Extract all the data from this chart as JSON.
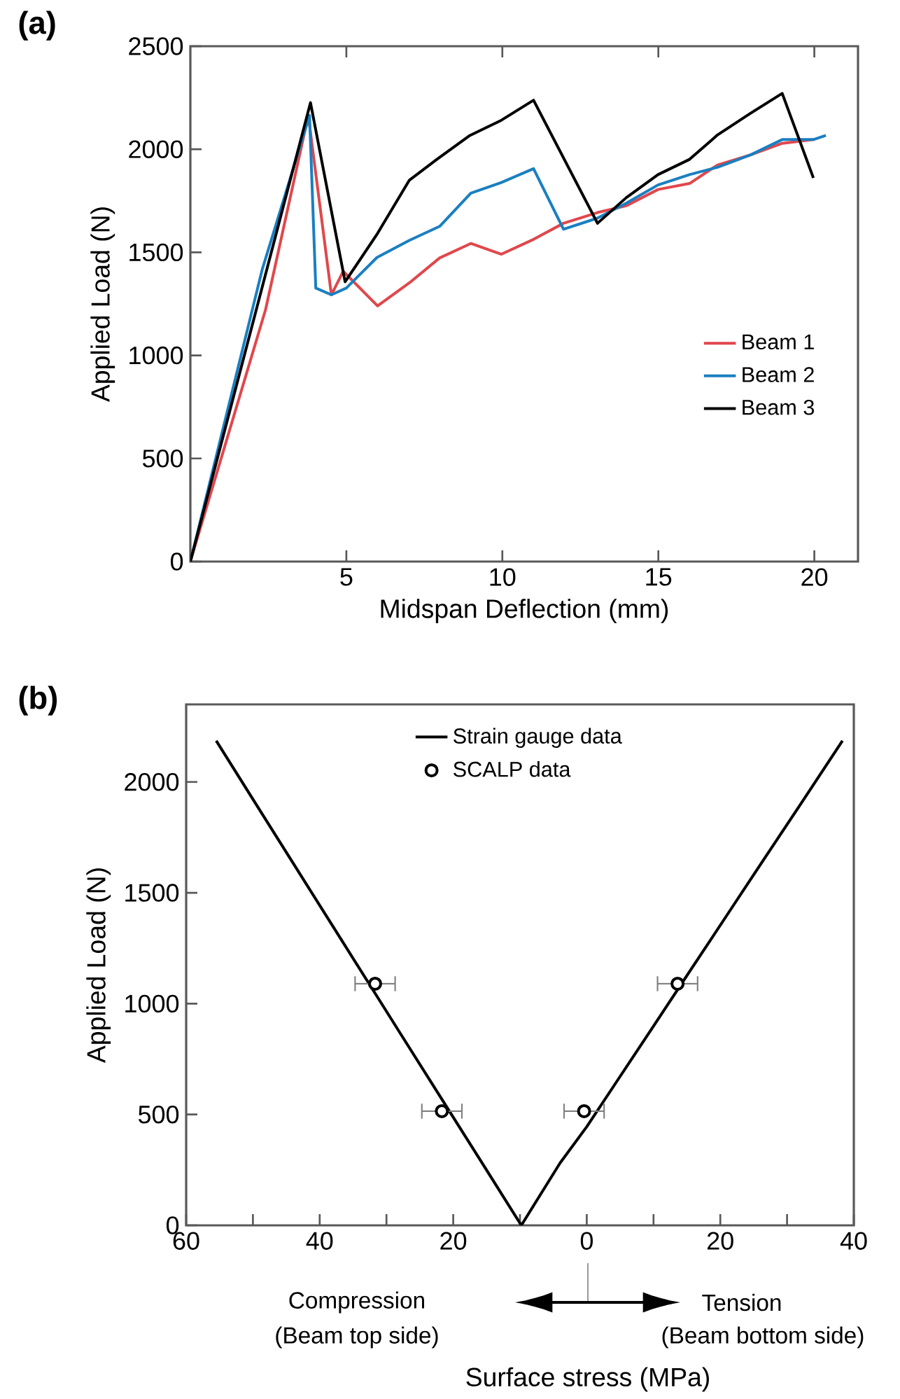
{
  "chart_data": [
    {
      "type": "line",
      "title": "(a)",
      "xlabel": "Midspan Deflection (mm)",
      "ylabel": "Applied Load (N)",
      "xlim": [
        0,
        21.4
      ],
      "xticks": [
        5,
        10,
        15,
        20
      ],
      "ylim": [
        0,
        2500
      ],
      "yticks": [
        0,
        500,
        1000,
        1500,
        2000,
        2500
      ],
      "legend": "right",
      "line_style": "solid",
      "marker": "none",
      "series": [
        {
          "name": "Beam 1",
          "color": "#e0474c",
          "x": [
            0,
            2.41,
            3.78,
            4.52,
            4.9,
            6.0,
            7.02,
            7.99,
            8.99,
            9.97,
            11.0,
            11.96,
            13.05,
            13.97,
            14.99,
            16.0,
            16.9,
            17.96,
            18.97,
            19.97
          ],
          "values": [
            0,
            1222,
            2164,
            1294,
            1408,
            1240,
            1352,
            1473,
            1543,
            1491,
            1563,
            1641,
            1693,
            1726,
            1805,
            1834,
            1924,
            1973,
            2029,
            2047
          ]
        },
        {
          "name": "Beam 2",
          "color": "#1a7fc1",
          "x": [
            0,
            2.3,
            3.82,
            4.02,
            4.52,
            5.0,
            5.98,
            7.02,
            7.99,
            8.99,
            9.97,
            11.0,
            11.96,
            13.05,
            13.97,
            14.99,
            16.0,
            16.9,
            17.96,
            18.97,
            19.97,
            20.37
          ],
          "values": [
            0,
            1415,
            2164,
            1327,
            1294,
            1327,
            1475,
            1558,
            1626,
            1787,
            1839,
            1906,
            1612,
            1666,
            1738,
            1827,
            1877,
            1913,
            1973,
            2047,
            2047,
            2067
          ]
        },
        {
          "name": "Beam 3",
          "color": "#000000",
          "x": [
            0,
            3.85,
            4.96,
            6.0,
            7.02,
            7.9,
            8.96,
            9.97,
            11.0,
            13.05,
            13.97,
            14.99,
            16.0,
            16.9,
            17.96,
            18.97,
            19.97
          ],
          "values": [
            0,
            2226,
            1357,
            1592,
            1850,
            1951,
            2067,
            2141,
            2238,
            1641,
            1765,
            1877,
            1951,
            2070,
            2175,
            2271,
            1861
          ]
        }
      ]
    },
    {
      "type": "line",
      "title": "(b)",
      "xlabel": "Surface stress (MPa)",
      "ylabel": "Applied Load (N)",
      "xlim": [
        -60,
        40
      ],
      "xticks": [
        {
          "value": -60,
          "label": "60"
        },
        {
          "value": -50,
          "label": null
        },
        {
          "value": -40,
          "label": "40"
        },
        {
          "value": -30,
          "label": null
        },
        {
          "value": -20,
          "label": "20"
        },
        {
          "value": -10,
          "label": null
        },
        0,
        {
          "value": 10,
          "label": null
        },
        20,
        {
          "value": 30,
          "label": null
        },
        40
      ],
      "ylim": [
        0,
        2350
      ],
      "yticks": [
        0,
        500,
        1000,
        1500,
        2000
      ],
      "legend": "top",
      "annotations": [
        "Compression",
        "(Beam top side)",
        "Tension",
        "(Beam bottom side)"
      ],
      "series": [
        {
          "name": "Strain gauge data",
          "type": "line",
          "color": "#000000",
          "line_style": "solid",
          "marker": "none",
          "x": [
            -55.5,
            -49,
            -43.9,
            -37,
            -31,
            -27.8,
            -22,
            -15,
            -9.8,
            -4,
            0,
            5,
            9.9,
            16,
            22,
            26,
            32,
            38.3
          ],
          "values": [
            2186,
            1874,
            1630,
            1300,
            1013,
            860,
            583,
            249,
            0,
            281,
            445,
            672,
            894,
            1172,
            1445,
            1627,
            1899,
            2186
          ]
        },
        {
          "name": "SCALP data",
          "type": "scatter",
          "color": "#000000",
          "marker": "circle",
          "x": [
            -31.7,
            -21.7,
            -0.4,
            13.6
          ],
          "values": [
            1090,
            515,
            515,
            1090
          ],
          "xerrors": [
            3,
            3,
            3,
            3
          ]
        }
      ]
    }
  ]
}
